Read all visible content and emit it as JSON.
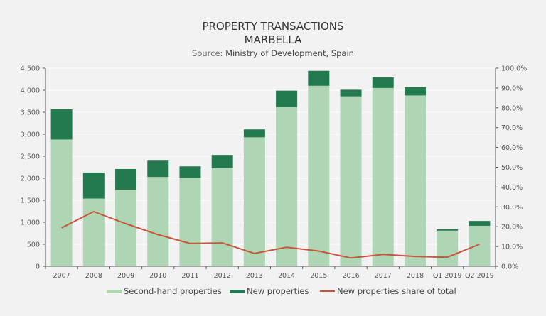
{
  "chart_data": {
    "type": "bar",
    "stacked": true,
    "title": "PROPERTY TRANSACTIONS",
    "subtitle": "MARBELLA",
    "source_prefix": "Source:",
    "source_text": "Ministry of Development, Spain",
    "categories": [
      "2007",
      "2008",
      "2009",
      "2010",
      "2011",
      "2012",
      "2013",
      "2014",
      "2015",
      "2016",
      "2017",
      "2018",
      "Q1 2019",
      "Q2 2019"
    ],
    "series": [
      {
        "name": "Second-hand properties",
        "type": "bar",
        "axis": "left",
        "color": "#aed5b4",
        "values": [
          2880,
          1540,
          1740,
          2030,
          2010,
          2230,
          2930,
          3620,
          4100,
          3860,
          4050,
          3880,
          810,
          920
        ]
      },
      {
        "name": "New properties",
        "type": "bar",
        "axis": "left",
        "color": "#237a4f",
        "values": [
          690,
          590,
          470,
          370,
          260,
          300,
          180,
          370,
          340,
          150,
          240,
          190,
          30,
          110
        ]
      },
      {
        "name": "New properties share of total",
        "type": "line",
        "axis": "right",
        "color": "#c9543a",
        "values": [
          19.4,
          27.6,
          21.5,
          16.0,
          11.5,
          11.8,
          6.5,
          9.6,
          7.7,
          4.2,
          6.0,
          5.0,
          4.6,
          11.1
        ]
      }
    ],
    "ylim": [
      0,
      4500
    ],
    "y_ticks": [
      0,
      500,
      1000,
      1500,
      2000,
      2500,
      3000,
      3500,
      4000,
      4500
    ],
    "y_tick_labels": [
      "0",
      "500",
      "1,000",
      "1,500",
      "2,000",
      "2,500",
      "3,000",
      "3,500",
      "4,000",
      "4,500"
    ],
    "y2lim": [
      0,
      100
    ],
    "y2_ticks": [
      0,
      10,
      20,
      30,
      40,
      50,
      60,
      70,
      80,
      90,
      100
    ],
    "y2_tick_labels": [
      "0.0%",
      "10.0%",
      "20.0%",
      "30.0%",
      "40.0%",
      "50.0%",
      "60.0%",
      "70.0%",
      "80.0%",
      "90.0%",
      "100.0%"
    ],
    "xlabel": "",
    "ylabel": "",
    "y2label": "",
    "grid": true,
    "legend_position": "bottom",
    "background_color": "#f2f2f2"
  }
}
